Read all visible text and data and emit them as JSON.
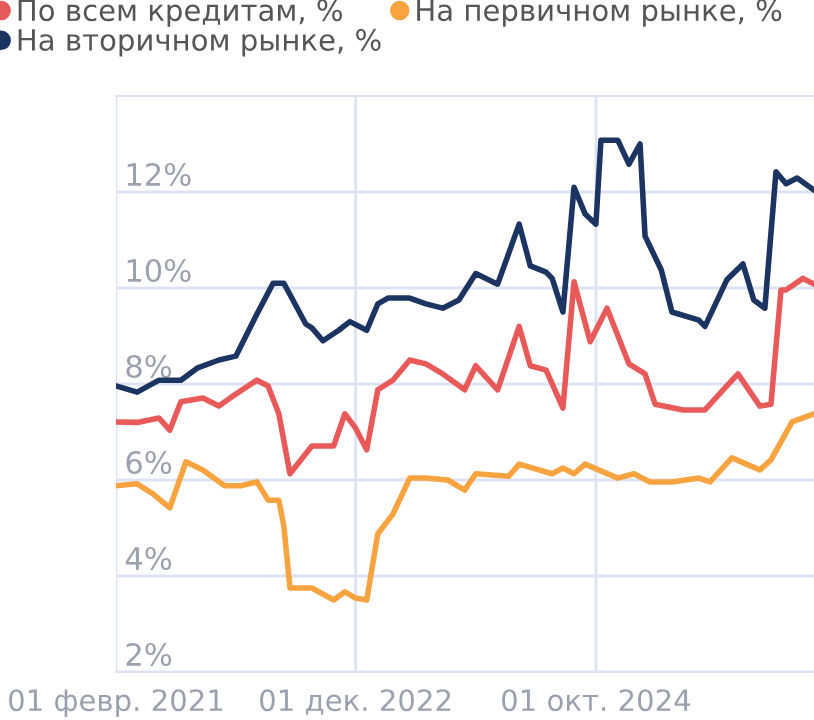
{
  "chart_data": {
    "type": "line",
    "series": [
      {
        "name": "По всем кредитам, %",
        "color": "#e85a5a",
        "x": [
          "2021-02-01",
          "2021-04-01",
          "2021-06-01",
          "2021-07-01",
          "2021-08-01",
          "2021-10-01",
          "2021-11-15",
          "2022-01-01",
          "2022-03-01",
          "2022-04-01",
          "2022-05-01",
          "2022-06-01",
          "2022-08-01",
          "2022-10-01",
          "2022-11-01",
          "2022-12-01",
          "2023-01-01",
          "2023-02-01",
          "2023-03-15",
          "2023-05-01",
          "2023-06-15",
          "2023-08-01",
          "2023-10-01",
          "2023-11-01",
          "2024-01-01",
          "2024-03-01",
          "2024-04-01",
          "2024-05-15",
          "2024-07-01",
          "2024-08-01",
          "2024-09-15",
          "2024-11-01",
          "2025-01-01",
          "2025-02-15",
          "2025-03-15",
          "2025-06-01",
          "2025-08-01",
          "2025-10-01",
          "2025-11-01",
          "2026-01-01",
          "2026-02-01",
          "2026-03-01",
          "2026-03-15",
          "2026-05-01",
          "2026-06-01"
        ],
        "values": [
          7.21,
          7.2,
          7.29,
          7.04,
          7.63,
          7.71,
          7.54,
          7.79,
          8.08,
          7.96,
          7.38,
          6.13,
          6.71,
          6.71,
          7.38,
          7.08,
          6.63,
          7.88,
          8.08,
          8.5,
          8.42,
          8.21,
          7.88,
          8.38,
          7.88,
          9.2,
          8.38,
          8.29,
          7.5,
          10.13,
          8.88,
          9.58,
          8.42,
          8.21,
          7.58,
          7.46,
          7.46,
          7.96,
          8.21,
          7.54,
          7.58,
          9.96,
          9.96,
          10.2,
          10.08
        ]
      },
      {
        "name": "На первичном рынке, %",
        "color": "#f7a440",
        "x": [
          "2021-02-01",
          "2021-04-01",
          "2021-05-15",
          "2021-07-01",
          "2021-08-15",
          "2021-10-01",
          "2021-12-01",
          "2022-01-15",
          "2022-03-01",
          "2022-04-01",
          "2022-05-01",
          "2022-05-15",
          "2022-06-01",
          "2022-08-01",
          "2022-10-01",
          "2022-11-01",
          "2022-12-01",
          "2023-01-01",
          "2023-02-01",
          "2023-03-15",
          "2023-05-01",
          "2023-06-15",
          "2023-08-15",
          "2023-10-01",
          "2023-11-01",
          "2024-02-01",
          "2024-03-01",
          "2024-06-01",
          "2024-07-01",
          "2024-08-01",
          "2024-09-01",
          "2024-12-01",
          "2025-01-15",
          "2025-03-01",
          "2025-05-01",
          "2025-07-15",
          "2025-08-15",
          "2025-10-15",
          "2026-01-01",
          "2026-02-01",
          "2026-04-01",
          "2026-06-01"
        ],
        "values": [
          5.88,
          5.92,
          5.71,
          5.42,
          6.38,
          6.21,
          5.88,
          5.88,
          5.96,
          5.58,
          5.58,
          5.04,
          3.75,
          3.75,
          3.5,
          3.67,
          3.54,
          3.5,
          4.88,
          5.29,
          6.04,
          6.04,
          6.0,
          5.79,
          6.13,
          6.08,
          6.33,
          6.13,
          6.25,
          6.13,
          6.33,
          6.04,
          6.13,
          5.96,
          5.96,
          6.04,
          5.96,
          6.46,
          6.21,
          6.42,
          7.21,
          7.38
        ]
      },
      {
        "name": "На вторичном рынке, %",
        "color": "#1c3461",
        "x": [
          "2021-02-01",
          "2021-04-01",
          "2021-06-01",
          "2021-08-01",
          "2021-09-15",
          "2021-11-15",
          "2022-01-01",
          "2022-03-01",
          "2022-04-15",
          "2022-05-15",
          "2022-07-15",
          "2022-08-01",
          "2022-09-01",
          "2022-10-15",
          "2022-11-15",
          "2023-01-01",
          "2023-02-01",
          "2023-03-01",
          "2023-05-01",
          "2023-06-15",
          "2023-08-01",
          "2023-09-15",
          "2023-11-01",
          "2024-01-01",
          "2024-03-01",
          "2024-04-01",
          "2024-05-15",
          "2024-06-01",
          "2024-07-01",
          "2024-08-01",
          "2024-09-01",
          "2024-10-01",
          "2024-10-15",
          "2024-12-01",
          "2025-01-01",
          "2025-02-01",
          "2025-02-15",
          "2025-04-01",
          "2025-05-01",
          "2025-07-15",
          "2025-08-01",
          "2025-10-01",
          "2025-11-15",
          "2025-12-15",
          "2026-01-15",
          "2026-02-15",
          "2026-03-15",
          "2026-04-15",
          "2026-06-01"
        ],
        "values": [
          7.96,
          7.83,
          8.08,
          8.08,
          8.33,
          8.5,
          8.58,
          9.46,
          10.1,
          10.1,
          9.25,
          9.17,
          8.9,
          9.12,
          9.3,
          9.12,
          9.67,
          9.79,
          9.79,
          9.67,
          9.58,
          9.75,
          10.3,
          10.08,
          11.33,
          10.46,
          10.33,
          10.2,
          9.5,
          12.1,
          11.54,
          11.33,
          13.08,
          13.08,
          12.58,
          13.0,
          11.08,
          10.38,
          9.5,
          9.33,
          9.2,
          10.17,
          10.5,
          9.75,
          9.58,
          12.42,
          12.17,
          12.29,
          12.04
        ]
      }
    ],
    "xlim": [
      "2021-02-01",
      "2026-06-01"
    ],
    "xticks": [
      {
        "value": "2021-02-01",
        "label": "01 февр. 2021"
      },
      {
        "value": "2022-12-01",
        "label": "01 дек. 2022"
      },
      {
        "value": "2024-10-01",
        "label": "01 окт. 2024"
      }
    ],
    "ylim": [
      2,
      14
    ],
    "yticks": [
      {
        "value": 2,
        "label": "2%"
      },
      {
        "value": 4,
        "label": "4%"
      },
      {
        "value": 6,
        "label": "6%"
      },
      {
        "value": 8,
        "label": "8%"
      },
      {
        "value": 10,
        "label": "10%"
      },
      {
        "value": 12,
        "label": "12%"
      }
    ],
    "grid": true,
    "legend": "top left",
    "marker": "none",
    "line_style": "solid"
  }
}
